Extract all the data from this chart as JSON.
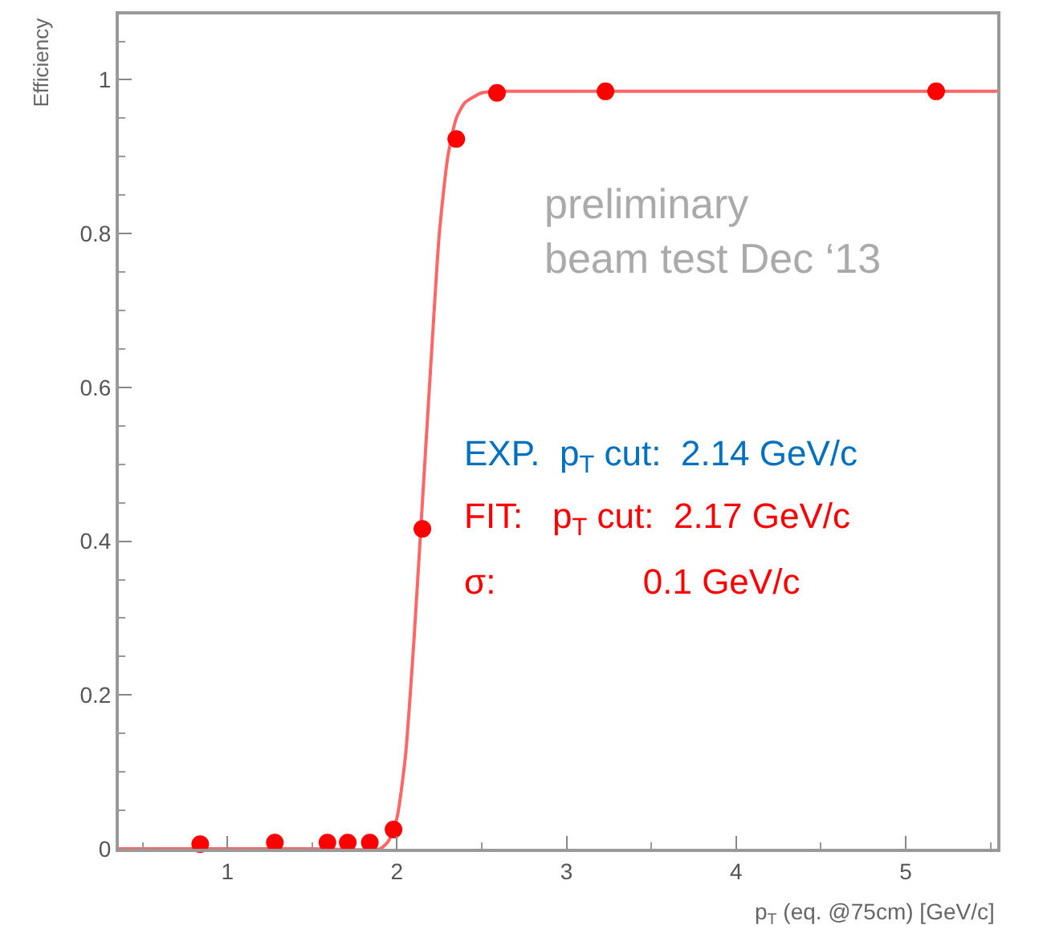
{
  "chart_data": {
    "type": "scatter",
    "xlabel": "p$_{T}$ (eq. @75cm) [GeV/c]",
    "ylabel": "Efficiency",
    "xlim": [
      0.36,
      5.54
    ],
    "xticks": [
      1,
      2,
      3,
      4,
      5
    ],
    "ylim": [
      0,
      1.085
    ],
    "yticks": [
      0,
      0.2,
      0.4,
      0.6,
      0.8,
      1
    ],
    "series": [
      {
        "type": "line",
        "color": "#ff6666",
        "marker": "none",
        "line_style": "solid",
        "x": [
          0.36,
          1.0,
          1.5,
          1.9,
          1.95,
          2.0,
          2.05,
          2.1,
          2.15,
          2.2,
          2.25,
          2.3,
          2.35,
          2.4,
          2.5,
          2.6,
          3.0,
          4.0,
          5.54
        ],
        "values": [
          0,
          0,
          0,
          0,
          0.01,
          0.04,
          0.12,
          0.27,
          0.45,
          0.63,
          0.8,
          0.9,
          0.95,
          0.97,
          0.983,
          0.985,
          0.985,
          0.985,
          0.985
        ]
      },
      {
        "color": "#ff0000",
        "marker": "circle",
        "x": [
          0.84,
          1.28,
          1.59,
          1.71,
          1.84,
          1.98,
          2.15,
          2.35,
          2.59,
          3.23,
          5.18
        ],
        "values": [
          0.006,
          0.008,
          0.008,
          0.008,
          0.008,
          0.025,
          0.416,
          0.923,
          0.983,
          0.985,
          0.985
        ]
      }
    ],
    "annotations": [
      "preliminary\nbeam test Dec ‘13",
      "EXP.  p$_{T}$ cut:  2.14 GeV/c",
      "FIT:   p$_{T}$ cut:  2.17 GeV/c",
      "σ:               0.1 GeV/c"
    ]
  }
}
